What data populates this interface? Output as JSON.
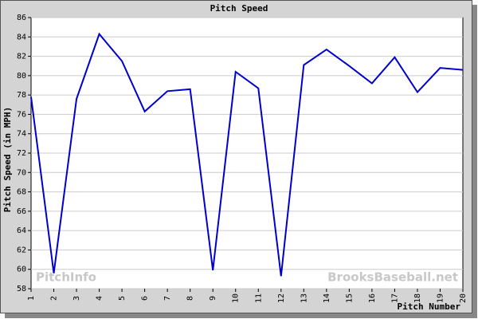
{
  "chart_data": {
    "type": "line",
    "title": "Pitch Speed",
    "x_label": "Pitch Number",
    "y_label": "Pitch Speed (in MPH)",
    "watermarks": [
      "PitchInfo",
      "BrooksBaseball.net"
    ],
    "x": [
      1,
      2,
      3,
      4,
      5,
      6,
      7,
      8,
      9,
      10,
      11,
      12,
      13,
      14,
      15,
      16,
      17,
      18,
      19,
      20
    ],
    "series": [
      {
        "name": "Pitch Speed",
        "color": "#0000cc",
        "values": [
          77.8,
          59.6,
          77.6,
          84.3,
          81.5,
          76.3,
          78.4,
          78.6,
          59.9,
          80.4,
          78.7,
          59.3,
          81.1,
          82.7,
          81.0,
          79.2,
          81.9,
          78.3,
          80.8,
          80.6
        ]
      }
    ],
    "xlim": [
      1,
      20
    ],
    "xticks": [
      1,
      2,
      3,
      4,
      5,
      6,
      7,
      8,
      9,
      10,
      11,
      12,
      13,
      14,
      15,
      16,
      17,
      18,
      19,
      20
    ],
    "ylim": [
      58,
      86
    ],
    "yticks": [
      58,
      60,
      62,
      64,
      66,
      68,
      70,
      72,
      74,
      76,
      78,
      80,
      82,
      84,
      86
    ],
    "grid": true
  }
}
